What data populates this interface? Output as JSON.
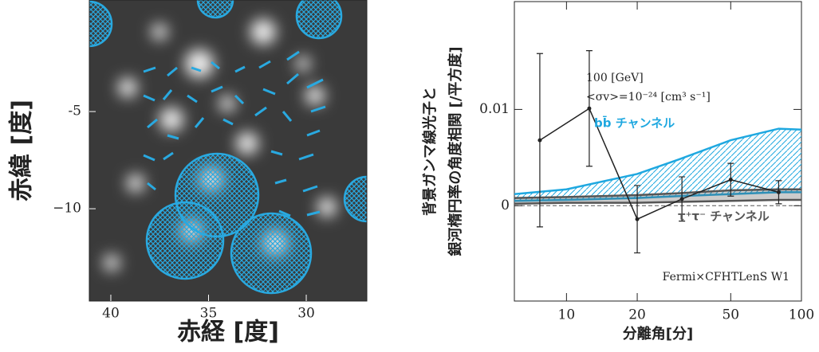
{
  "chart_data": [
    {
      "type": "image",
      "xlabel": "赤経 [度]",
      "ylabel": "赤緯 [度]",
      "xlim": [
        41.1,
        26.9
      ],
      "xticks": [
        40,
        35,
        30
      ],
      "ylim": [
        -14.75,
        0.74
      ],
      "yticks": [
        {
          "value": -5,
          "label": "-5"
        },
        {
          "value": -10,
          "label": "−10"
        }
      ]
    },
    {
      "type": "errorbar",
      "xlabel": "分離角[分]",
      "ylabel": [
        "背景ガンマ線光子と",
        "銀河楕円率の角度相関 [/平方度]"
      ],
      "log_x": true,
      "xlim": [
        6,
        100
      ],
      "xticks": [
        10,
        20,
        50,
        100
      ],
      "ylim": [
        -0.0099,
        0.0212
      ],
      "yticks": [
        0,
        0.01
      ],
      "zero_line": true,
      "annotations": [
        "100 [GeV]",
        "<σv>=10⁻²⁴ [cm³ s⁻¹]",
        "Fermi×CFHTLenS W1"
      ],
      "points": {
        "color": "#222222",
        "x": [
          7.7,
          12.5,
          20,
          31,
          50,
          80
        ],
        "y": [
          0.0068,
          0.0101,
          -0.0014,
          0.0007,
          0.0027,
          0.0014
        ],
        "errors": [
          0.009,
          0.006,
          0.0035,
          0.0023,
          0.0017,
          0.0012
        ]
      },
      "bands": [
        {
          "label": "bb̄ チャンネル",
          "color": "#1fa8e0",
          "hatch": true,
          "x": [
            6,
            10,
            20,
            30,
            50,
            80,
            100
          ],
          "upper": [
            0.0012,
            0.0017,
            0.0033,
            0.0048,
            0.0068,
            0.008,
            0.0079
          ],
          "lower": [
            0.0005,
            0.0006,
            0.0008,
            0.001,
            0.0012,
            0.0014,
            0.0014
          ]
        },
        {
          "label": "τ⁺τ⁻ チャンネル",
          "color": "#555555",
          "hatch": false,
          "x": [
            6,
            10,
            20,
            30,
            50,
            80,
            100
          ],
          "upper": [
            0.0008,
            0.0009,
            0.0011,
            0.0013,
            0.0016,
            0.0017,
            0.0017
          ],
          "lower": [
            0.0002,
            0.0003,
            0.0003,
            0.0004,
            0.0005,
            0.0006,
            0.0006
          ]
        }
      ]
    }
  ]
}
